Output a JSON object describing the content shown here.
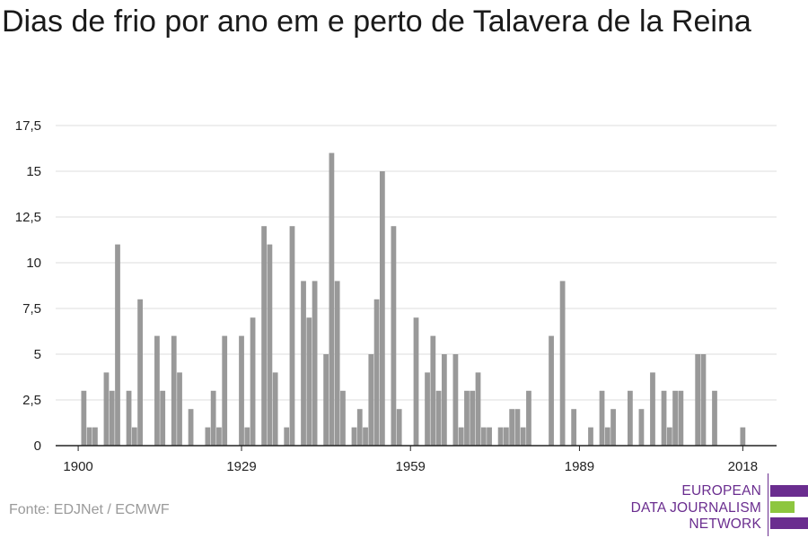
{
  "title": "Dias de frio por ano em e perto de Talavera de la Reina",
  "source": "Fonte: EDJNet / ECMWF",
  "logo": {
    "line1": "EUROPEAN",
    "line2": "DATA JOURNALISM",
    "line3": "NETWORK",
    "colors": {
      "purple": "#6a2d8f",
      "green": "#8dc63f"
    }
  },
  "colors": {
    "bar": "#999999",
    "grid": "#dddddd",
    "axis": "#222222",
    "text": "#222222"
  },
  "chart_data": {
    "type": "bar",
    "title": "Dias de frio por ano em e perto de Talavera de la Reina",
    "xlabel": "",
    "ylabel": "",
    "ylim": [
      0,
      17.5
    ],
    "y_ticks": [
      "0",
      "2,5",
      "5",
      "7,5",
      "10",
      "12,5",
      "15",
      "17,5"
    ],
    "y_tick_values": [
      0,
      2.5,
      5,
      7.5,
      10,
      12.5,
      15,
      17.5
    ],
    "x_ticks": [
      "1900",
      "1929",
      "1959",
      "1989",
      "2018"
    ],
    "x_tick_values": [
      1900,
      1929,
      1959,
      1989,
      2018
    ],
    "xlim": [
      1896,
      2024
    ],
    "grid": true,
    "x": [
      1901,
      1902,
      1903,
      1904,
      1905,
      1906,
      1907,
      1908,
      1909,
      1910,
      1911,
      1912,
      1913,
      1914,
      1915,
      1916,
      1917,
      1918,
      1919,
      1920,
      1921,
      1922,
      1923,
      1924,
      1925,
      1926,
      1927,
      1928,
      1929,
      1930,
      1931,
      1932,
      1933,
      1934,
      1935,
      1936,
      1937,
      1938,
      1939,
      1940,
      1941,
      1942,
      1943,
      1944,
      1945,
      1946,
      1947,
      1948,
      1949,
      1950,
      1951,
      1952,
      1953,
      1954,
      1955,
      1956,
      1957,
      1958,
      1959,
      1960,
      1961,
      1962,
      1963,
      1964,
      1965,
      1966,
      1967,
      1968,
      1969,
      1970,
      1971,
      1972,
      1973,
      1974,
      1975,
      1976,
      1977,
      1978,
      1979,
      1980,
      1981,
      1982,
      1983,
      1984,
      1985,
      1986,
      1987,
      1988,
      1989,
      1990,
      1991,
      1992,
      1993,
      1994,
      1995,
      1996,
      1997,
      1998,
      1999,
      2000,
      2001,
      2002,
      2003,
      2004,
      2005,
      2006,
      2007,
      2008,
      2009,
      2010,
      2011,
      2012,
      2013,
      2014,
      2015,
      2016,
      2017,
      2018,
      2019,
      2020
    ],
    "values": [
      3,
      1,
      1,
      0,
      4,
      3,
      11,
      0,
      3,
      1,
      8,
      0,
      0,
      6,
      3,
      0,
      6,
      4,
      0,
      2,
      0,
      0,
      1,
      3,
      1,
      6,
      0,
      0,
      6,
      1,
      7,
      0,
      12,
      11,
      4,
      0,
      1,
      12,
      0,
      9,
      7,
      9,
      0,
      5,
      16,
      9,
      3,
      0,
      1,
      2,
      1,
      5,
      8,
      15,
      0,
      12,
      2,
      0,
      0,
      7,
      0,
      4,
      6,
      3,
      5,
      0,
      5,
      1,
      3,
      3,
      4,
      1,
      1,
      0,
      1,
      1,
      2,
      2,
      1,
      3,
      0,
      0,
      0,
      6,
      0,
      9,
      0,
      2,
      0,
      0,
      1,
      0,
      3,
      1,
      2,
      0,
      0,
      3,
      0,
      2,
      0,
      4,
      0,
      3,
      1,
      3,
      3,
      0,
      0,
      5,
      5,
      0,
      3,
      0,
      0,
      0,
      0,
      1,
      0,
      0
    ]
  }
}
